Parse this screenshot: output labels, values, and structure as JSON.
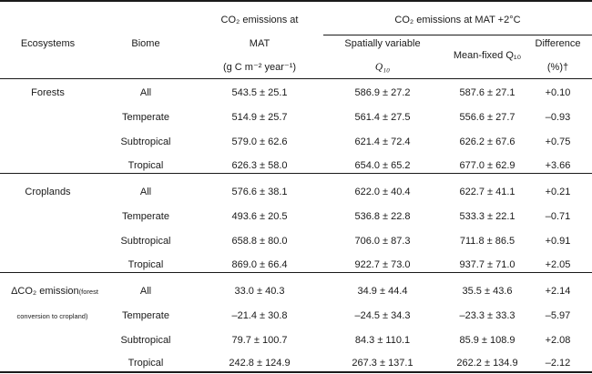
{
  "header": {
    "ecosystems": "Ecosystems",
    "biome": "Biome",
    "co2_mat_line1": "CO₂ emissions at",
    "co2_mat_line2": "MAT",
    "co2_mat_unit": "(g C m⁻² year⁻¹)",
    "co2_mat2_group": "CO₂ emissions at MAT +2°C",
    "spatially_variable": "Spatially variable",
    "q10": "Q₁₀",
    "mean_fixed": "Mean-fixed Q₁₀",
    "difference": "Difference",
    "difference_unit": "(%)†"
  },
  "groups": [
    {
      "name": "Forests",
      "name_note": "",
      "rows": [
        {
          "biome": "All",
          "mat": "543.5 ± 25.1",
          "sv": "586.9 ± 27.2",
          "mf": "587.6 ± 27.1",
          "diff": "+0.10"
        },
        {
          "biome": "Temperate",
          "mat": "514.9 ± 25.7",
          "sv": "561.4 ± 27.5",
          "mf": "556.6 ± 27.7",
          "diff": "–0.93"
        },
        {
          "biome": "Subtropical",
          "mat": "579.0 ± 62.6",
          "sv": "621.4 ± 72.4",
          "mf": "626.2 ± 67.6",
          "diff": "+0.75"
        },
        {
          "biome": "Tropical",
          "mat": "626.3 ± 58.0",
          "sv": "654.0 ± 65.2",
          "mf": "677.0 ± 62.9",
          "diff": "+3.66"
        }
      ]
    },
    {
      "name": "Croplands",
      "name_note": "",
      "rows": [
        {
          "biome": "All",
          "mat": "576.6 ± 38.1",
          "sv": "622.0 ± 40.4",
          "mf": "622.7 ± 41.1",
          "diff": "+0.21"
        },
        {
          "biome": "Temperate",
          "mat": "493.6 ± 20.5",
          "sv": "536.8 ± 22.8",
          "mf": "533.3 ± 22.1",
          "diff": "–0.71"
        },
        {
          "biome": "Subtropical",
          "mat": "658.8 ± 80.0",
          "sv": "706.0 ± 87.3",
          "mf": "711.8 ± 86.5",
          "diff": "+0.91"
        },
        {
          "biome": "Tropical",
          "mat": "869.0 ± 66.4",
          "sv": "922.7 ± 73.0",
          "mf": "937.7 ± 71.0",
          "diff": "+2.05"
        }
      ]
    },
    {
      "name": "ΔCO₂ emission",
      "name_suffix": "(forest",
      "name_note": "conversion to cropland)",
      "rows": [
        {
          "biome": "All",
          "mat": "33.0 ± 40.3",
          "sv": "34.9 ± 44.4",
          "mf": "35.5 ± 43.6",
          "diff": "+2.14"
        },
        {
          "biome": "Temperate",
          "mat": "–21.4 ± 30.8",
          "sv": "–24.5 ± 34.3",
          "mf": "–23.3 ± 33.3",
          "diff": "–5.97"
        },
        {
          "biome": "Subtropical",
          "mat": "79.7 ± 100.7",
          "sv": "84.3 ± 110.1",
          "mf": "85.9 ± 108.9",
          "diff": "+2.08"
        },
        {
          "biome": "Tropical",
          "mat": "242.8 ± 124.9",
          "sv": "267.3 ± 137.1",
          "mf": "262.2 ± 134.9",
          "diff": "–2.12"
        }
      ]
    }
  ]
}
